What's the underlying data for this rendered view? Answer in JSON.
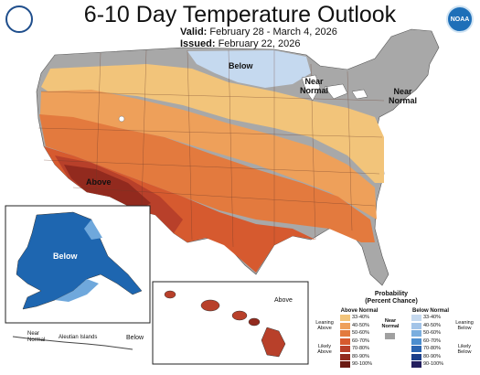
{
  "header": {
    "title": "6-10 Day Temperature Outlook",
    "valid_label": "Valid:",
    "valid_value": "February 28 - March 4, 2026",
    "issued_label": "Issued:",
    "issued_value": "February 22, 2026"
  },
  "logos": {
    "left_icon": "usda-seal-icon",
    "right_icon": "noaa-logo-icon",
    "right_text": "NOAA"
  },
  "map_labels": {
    "below_north": "Below",
    "near_normal_midwest": "Near\nNormal",
    "near_normal_northeast": "Near\nNormal",
    "above_southwest": "Above",
    "alaska_below": "Below",
    "alaska_near_normal": "Near\nNormal",
    "aleutian": "Aleutian Islands",
    "aleutian_below": "Below",
    "hawaii_above": "Above"
  },
  "legend": {
    "title": "Probability",
    "subtitle": "(Percent Chance)",
    "above_header": "Above Normal",
    "below_header": "Below Normal",
    "near_normal": "Near\nNormal",
    "leaning_above": "Leaning\nAbove",
    "likely_above": "Likely\nAbove",
    "leaning_below": "Leaning\nBelow",
    "likely_below": "Likely\nBelow",
    "above_bins": [
      {
        "label": "33-40%",
        "color": "#f2c47a"
      },
      {
        "label": "40-50%",
        "color": "#eea05a"
      },
      {
        "label": "50-60%",
        "color": "#e37a3e"
      },
      {
        "label": "60-70%",
        "color": "#d65a2f"
      },
      {
        "label": "70-80%",
        "color": "#b8402a"
      },
      {
        "label": "80-90%",
        "color": "#922a1e"
      },
      {
        "label": "90-100%",
        "color": "#6b1a12"
      }
    ],
    "below_bins": [
      {
        "label": "33-40%",
        "color": "#c5d9ef"
      },
      {
        "label": "40-50%",
        "color": "#a3c4e8"
      },
      {
        "label": "50-60%",
        "color": "#7aaedf"
      },
      {
        "label": "60-70%",
        "color": "#4c8ecf"
      },
      {
        "label": "70-80%",
        "color": "#2a64b0"
      },
      {
        "label": "80-90%",
        "color": "#1b3f8a"
      },
      {
        "label": "90-100%",
        "color": "#231f5e"
      }
    ],
    "near_color": "#a0a0a0"
  },
  "colors": {
    "gray": "#a8a8a8",
    "light_blue": "#c5d9ef",
    "alaska_blue": "#1e66b0",
    "alaska_light": "#6fa8dc",
    "dark_red": "#6b1a12"
  }
}
